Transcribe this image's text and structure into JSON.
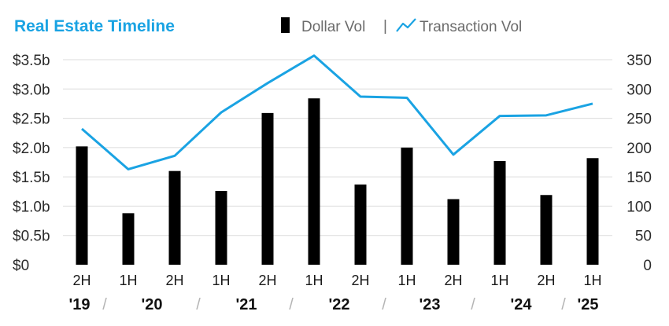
{
  "chart_data": {
    "type": "bar",
    "title": "Real Estate Timeline",
    "legend": [
      "Dollar Vol",
      "Transaction Vol"
    ],
    "legend_separator": "|",
    "legend_placement": "top-right",
    "grid": true,
    "categories": [
      "2H",
      "1H",
      "2H",
      "1H",
      "2H",
      "1H",
      "2H",
      "1H",
      "2H",
      "1H",
      "2H",
      "1H"
    ],
    "years": [
      "'19",
      "'20",
      "'21",
      "'22",
      "'23",
      "'24",
      "'25"
    ],
    "year_separator": "/",
    "series": [
      {
        "name": "Dollar Vol",
        "type": "bar",
        "axis": "left",
        "color": "#000000",
        "values": [
          2.02,
          0.88,
          1.6,
          1.26,
          2.59,
          2.84,
          1.37,
          2.0,
          1.12,
          1.77,
          1.19,
          1.82
        ]
      },
      {
        "name": "Transaction Vol",
        "type": "line",
        "axis": "right",
        "color": "#1aa3e3",
        "values": [
          232,
          163,
          186,
          260,
          310,
          357,
          287,
          285,
          188,
          254,
          255,
          275
        ]
      }
    ],
    "y_left": {
      "ylim": [
        0,
        3.5
      ],
      "ticks": [
        0,
        0.5,
        1.0,
        1.5,
        2.0,
        2.5,
        3.0,
        3.5
      ],
      "tick_labels": [
        "$0",
        "$0.5b",
        "$1.0b",
        "$1.5b",
        "$2.0b",
        "$2.5b",
        "$3.0b",
        "$3.5b"
      ]
    },
    "y_right": {
      "ylim": [
        0,
        350
      ],
      "ticks": [
        0,
        50,
        100,
        150,
        200,
        250,
        300,
        350
      ],
      "tick_labels": [
        "0",
        "50",
        "100",
        "150",
        "200",
        "250",
        "300",
        "350"
      ]
    },
    "title_color": "#1aa3e3",
    "line_color": "#1aa3e3",
    "bar_color": "#000000"
  }
}
